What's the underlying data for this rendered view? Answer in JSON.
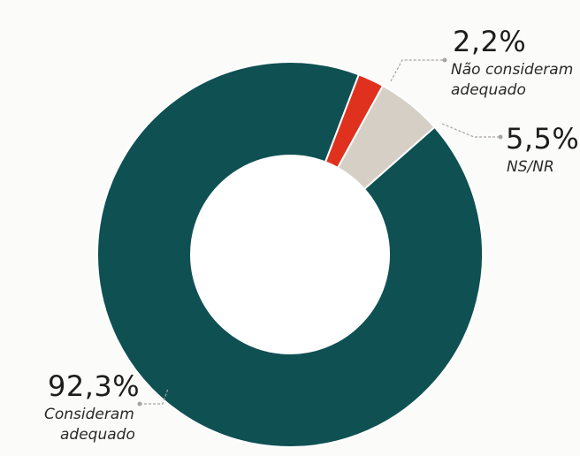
{
  "caption": "",
  "colors": {
    "considered": "#0f5053",
    "not_considered": "#e0311f",
    "nsnr": "#d6cfc6",
    "leader": "#a8a49f"
  },
  "chart_data": {
    "type": "pie",
    "variant": "donut",
    "title": "",
    "slices": [
      {
        "pct_label": "92,3%",
        "label": "Consideram adequado",
        "value": 92.3,
        "color": "#0f5053"
      },
      {
        "pct_label": "2,2%",
        "label": "Não consideram adequado",
        "value": 2.2,
        "color": "#e0311f"
      },
      {
        "pct_label": "5,5%",
        "label": "NS/NR",
        "value": 5.5,
        "color": "#d6cfc6"
      }
    ]
  },
  "labels": {
    "considered": {
      "pct": "92,3%",
      "line1": "Consideram",
      "line2": "adequado"
    },
    "not_considered": {
      "pct": "2,2%",
      "line1": "Não consideram",
      "line2": "adequado"
    },
    "nsnr": {
      "pct": "5,5%",
      "line1": "NS/NR"
    }
  }
}
